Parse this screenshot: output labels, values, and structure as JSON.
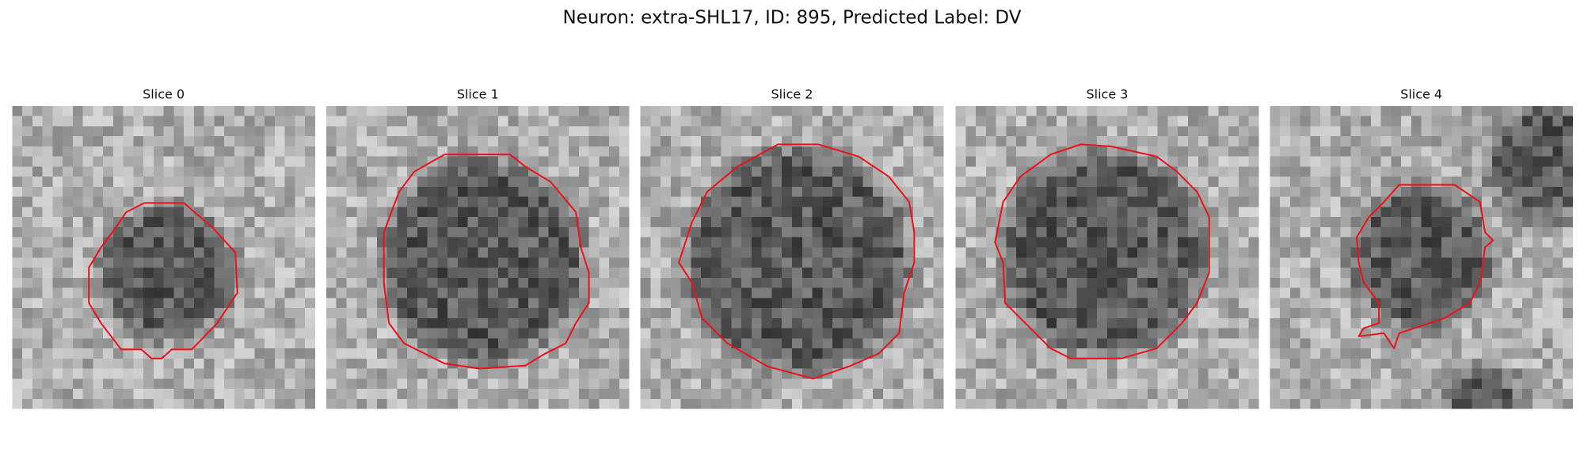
{
  "title": "Neuron: extra-SHL17, ID: 895, Predicted Label: DV",
  "panels": [
    {
      "title": "Slice 0"
    },
    {
      "title": "Slice 1"
    },
    {
      "title": "Slice 2"
    },
    {
      "title": "Slice 3"
    },
    {
      "title": "Slice 4"
    }
  ]
}
